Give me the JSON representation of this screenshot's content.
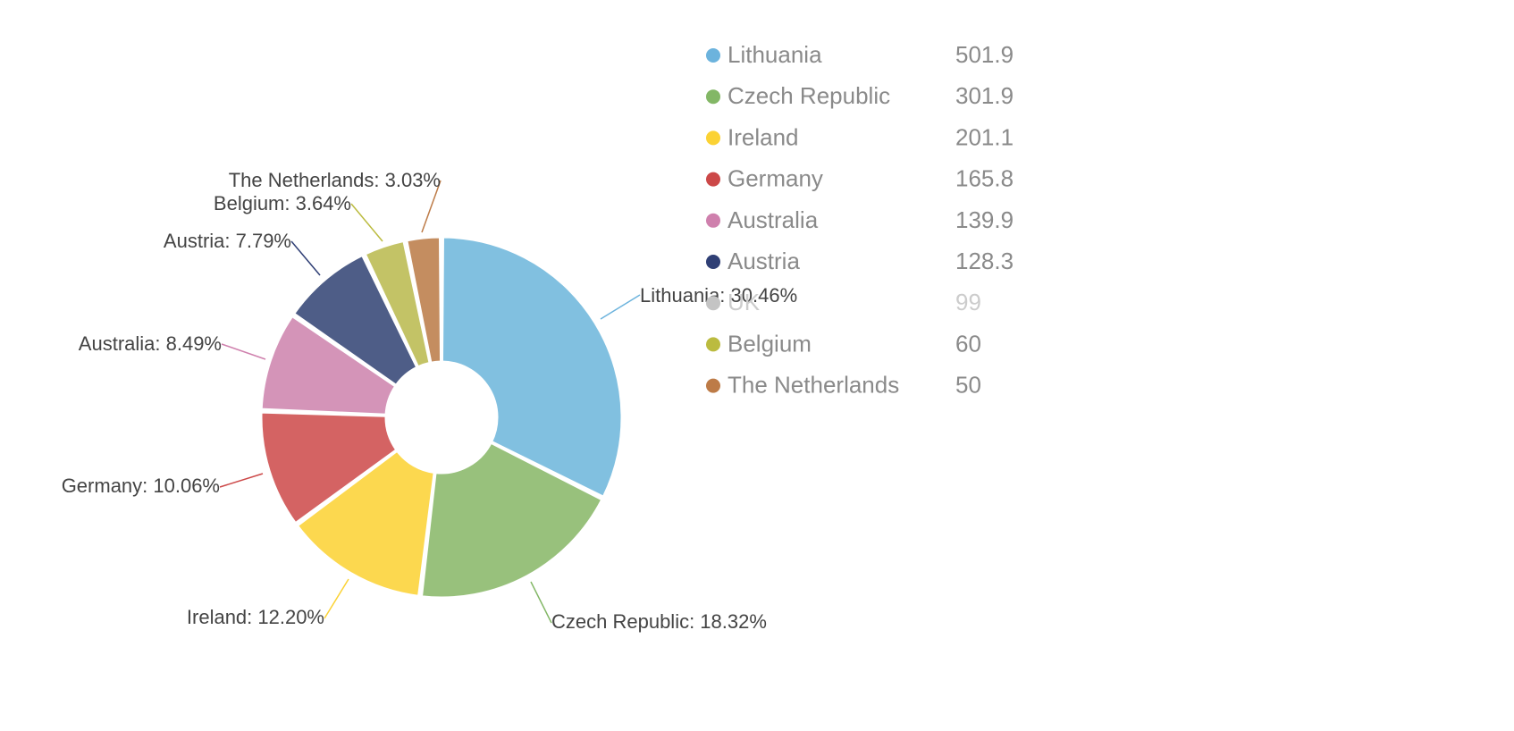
{
  "chart_data": {
    "type": "pie",
    "style": "donut",
    "legend_position": "right",
    "slices": [
      {
        "label": "Lithuania",
        "value": 501.9,
        "percent_label": "Lithuania: 30.46%",
        "color": "#81c0e0",
        "legend_color": "#6cb3dd",
        "visible": true
      },
      {
        "label": "Czech Republic",
        "value": 301.9,
        "percent_label": "Czech Republic: 18.32%",
        "color": "#98c17c",
        "legend_color": "#83b766",
        "visible": true
      },
      {
        "label": "Ireland",
        "value": 201.1,
        "percent_label": "Ireland: 12.20%",
        "color": "#fcd84f",
        "legend_color": "#fbd234",
        "visible": true
      },
      {
        "label": "Germany",
        "value": 165.8,
        "percent_label": "Germany: 10.06%",
        "color": "#d46363",
        "legend_color": "#cc4848",
        "visible": true
      },
      {
        "label": "Australia",
        "value": 139.9,
        "percent_label": "Australia: 8.49%",
        "color": "#d494b8",
        "legend_color": "#cf80ad",
        "visible": true
      },
      {
        "label": "Austria",
        "value": 128.3,
        "percent_label": "Austria: 7.79%",
        "color": "#4e5d87",
        "legend_color": "#2f3f75",
        "visible": true
      },
      {
        "label": "UK",
        "value": 99,
        "percent_label": "",
        "color": "#c4c4c4",
        "legend_color": "#c4c4c4",
        "visible": false
      },
      {
        "label": "Belgium",
        "value": 60,
        "percent_label": "Belgium: 3.64%",
        "color": "#c3c366",
        "legend_color": "#bbbb3f",
        "visible": true
      },
      {
        "label": "The Netherlands",
        "value": 50,
        "percent_label": "The Netherlands: 3.03%",
        "color": "#c48d60",
        "legend_color": "#bd7b47",
        "visible": true
      }
    ]
  },
  "colors": {
    "legend_text": "#8a8a8a",
    "legend_text_disabled": "#cccccc",
    "label_text": "#444444"
  }
}
